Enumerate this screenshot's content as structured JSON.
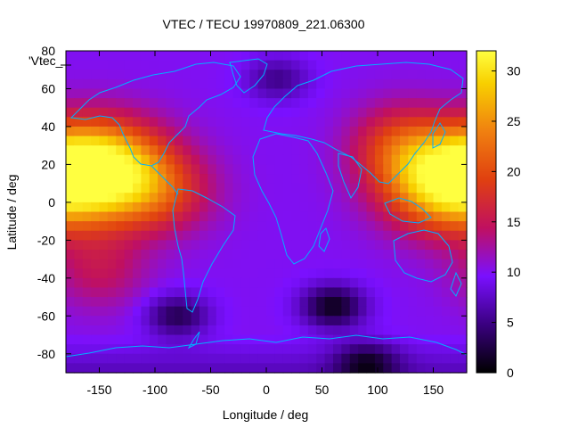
{
  "chart_data": {
    "type": "heatmap",
    "title": "VTEC / TECU 19970809_221.06300",
    "xlabel": "Longitude / deg",
    "ylabel": "Latitude / deg",
    "key_label": "'Vtec_",
    "xlim": [
      -180,
      180
    ],
    "ylim": [
      -90,
      80
    ],
    "xticks": [
      -150,
      -100,
      -50,
      0,
      50,
      100,
      150
    ],
    "yticks": [
      -80,
      -60,
      -40,
      -20,
      0,
      20,
      40,
      60,
      80
    ],
    "colorbar": {
      "min": 0,
      "max": 32,
      "ticks": [
        0,
        5,
        10,
        15,
        20,
        25,
        30
      ]
    },
    "colormap": [
      "#000000",
      "#3a0080",
      "#7a10ff",
      "#c01060",
      "#e04010",
      "#f08010",
      "#f8d000",
      "#ffff40"
    ],
    "grid": false,
    "legend": "top-left",
    "data_features": [
      {
        "lon": -150,
        "lat": 18,
        "value": 31,
        "spread_lon": 40,
        "spread_lat": 17
      },
      {
        "lon": 160,
        "lat": 10,
        "value": 27,
        "spread_lon": 38,
        "spread_lat": 17
      },
      {
        "lon": -100,
        "lat": 5,
        "value": 17,
        "spread_lon": 35,
        "spread_lat": 15
      },
      {
        "lon": 120,
        "lat": 30,
        "value": 17,
        "spread_lon": 30,
        "spread_lat": 15
      },
      {
        "lon": -150,
        "lat": -35,
        "value": 14,
        "spread_lon": 30,
        "spread_lat": 15
      }
    ],
    "background_value": 9.5,
    "low_features": [
      {
        "lon": 60,
        "lat": -55,
        "value": 1
      },
      {
        "lon": -80,
        "lat": -60,
        "value": 3
      },
      {
        "lon": 10,
        "lat": 65,
        "value": 5
      },
      {
        "lon": 90,
        "lat": -85,
        "value": 3
      }
    ]
  }
}
